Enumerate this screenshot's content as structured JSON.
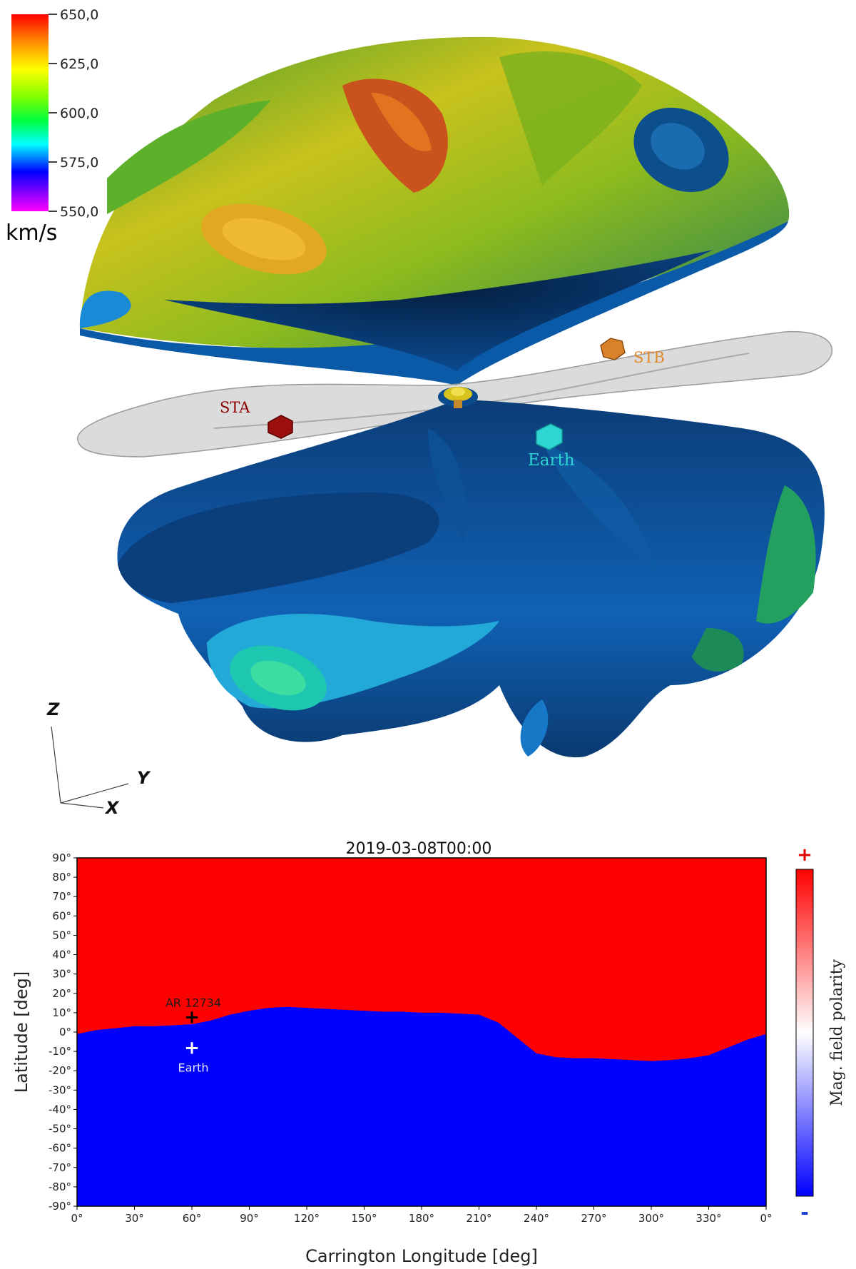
{
  "figure_3d": {
    "colorbar": {
      "ticks": [
        "650,0",
        "625,0",
        "600,0",
        "575,0",
        "550,0"
      ],
      "unit": "km/s",
      "colors": [
        "#ff0000",
        "#ff8c00",
        "#ffff00",
        "#80ff00",
        "#00ff00",
        "#00ffff",
        "#0000ff",
        "#ff00ff"
      ]
    },
    "spacecraft": [
      {
        "label": "STA",
        "color": "#8b0000"
      },
      {
        "label": "STB",
        "color": "#e08a2c"
      },
      {
        "label": "Earth",
        "color": "#2fd5d2"
      }
    ],
    "axes": {
      "z": "Z",
      "y": "Y",
      "x": "X"
    }
  },
  "chart_data": {
    "type": "heatmap",
    "title": "2019-03-08T00:00",
    "xlabel": "Carrington Longitude [deg]",
    "ylabel": "Latitude [deg]",
    "xlim": [
      0,
      360
    ],
    "ylim": [
      -90,
      90
    ],
    "x_ticks": [
      "0°",
      "30°",
      "60°",
      "90°",
      "120°",
      "150°",
      "180°",
      "210°",
      "240°",
      "270°",
      "300°",
      "330°",
      "0°"
    ],
    "y_ticks": [
      "90°",
      "80°",
      "70°",
      "60°",
      "50°",
      "40°",
      "30°",
      "20°",
      "10°",
      "0°",
      "-10°",
      "-20°",
      "-30°",
      "-40°",
      "-50°",
      "-60°",
      "-70°",
      "-80°",
      "-90°"
    ],
    "positive_color": "#ff0000",
    "negative_color": "#0000ff",
    "neutral_line": {
      "lon": [
        0,
        10,
        20,
        30,
        40,
        50,
        60,
        70,
        80,
        90,
        100,
        110,
        120,
        130,
        140,
        150,
        160,
        170,
        180,
        190,
        200,
        210,
        220,
        230,
        240,
        250,
        260,
        270,
        280,
        290,
        300,
        310,
        320,
        330,
        340,
        350,
        360
      ],
      "lat": [
        -1,
        1,
        2,
        3,
        3,
        3.5,
        4,
        6,
        9,
        11,
        12.5,
        13,
        12.5,
        12,
        11.5,
        11,
        10.5,
        10.5,
        10,
        10,
        9.5,
        9,
        5,
        -3,
        -11,
        -13,
        -13.5,
        -13.5,
        -14,
        -14.5,
        -15,
        -14.5,
        -13.5,
        -12,
        -8,
        -4,
        -1
      ]
    },
    "markers": [
      {
        "label": "AR 12734",
        "lon": 60,
        "lat": 8,
        "color": "#000000"
      },
      {
        "label": "Earth",
        "lon": 60,
        "lat": -8,
        "color": "#ffffff"
      }
    ],
    "colorbar": {
      "label": "Mag. field polarity",
      "top": "+",
      "bottom": "-"
    }
  }
}
